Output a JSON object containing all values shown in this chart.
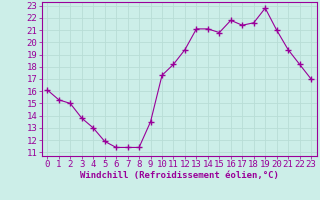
{
  "x": [
    0,
    1,
    2,
    3,
    4,
    5,
    6,
    7,
    8,
    9,
    10,
    11,
    12,
    13,
    14,
    15,
    16,
    17,
    18,
    19,
    20,
    21,
    22,
    23
  ],
  "y": [
    16.1,
    15.3,
    15.0,
    13.8,
    13.0,
    11.9,
    11.4,
    11.4,
    11.4,
    13.5,
    17.3,
    18.2,
    19.4,
    21.1,
    21.1,
    20.8,
    21.8,
    21.4,
    21.6,
    22.8,
    21.0,
    19.4,
    18.2,
    17.0
  ],
  "line_color": "#990099",
  "marker": "+",
  "markersize": 4,
  "bg_color": "#cceee8",
  "grid_color": "#aaddcc",
  "xlabel": "Windchill (Refroidissement éolien,°C)",
  "ylabel_ticks": [
    11,
    12,
    13,
    14,
    15,
    16,
    17,
    18,
    19,
    20,
    21,
    22,
    23
  ],
  "ylim": [
    10.7,
    23.3
  ],
  "xlim": [
    -0.5,
    23.5
  ],
  "xlabel_fontsize": 6.5,
  "tick_fontsize": 6.5
}
